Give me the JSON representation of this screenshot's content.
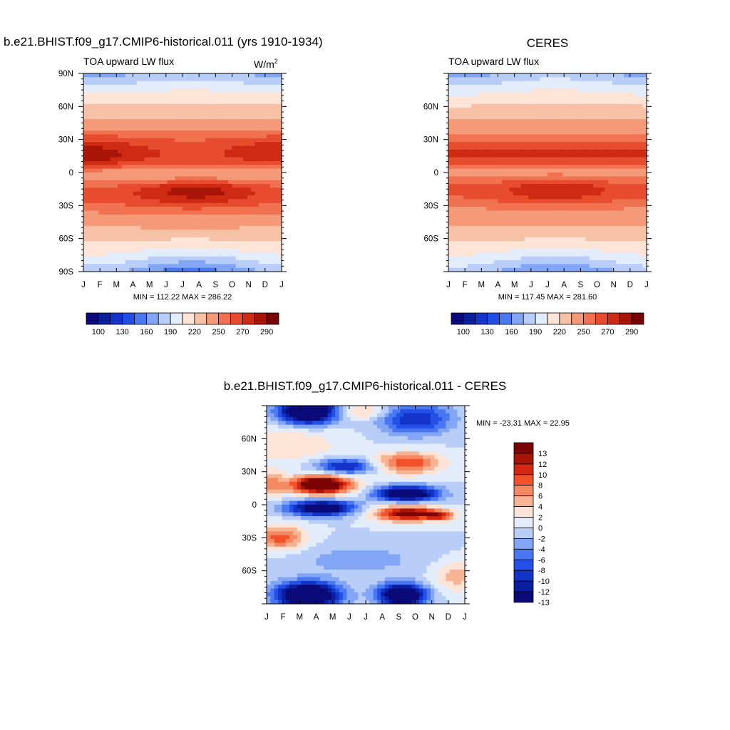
{
  "chart_data": [
    {
      "type": "heatmap",
      "title": "b.e21.BHIST.f09_g17.CMIP6-historical.011 (yrs 1910-1934)",
      "subtitle_left": "TOA upward LW flux",
      "units_base": "W/m",
      "units_exp": "2",
      "x_ticks": [
        "J",
        "F",
        "M",
        "A",
        "M",
        "J",
        "J",
        "A",
        "S",
        "O",
        "N",
        "D",
        "J"
      ],
      "y_ticks": [
        "90N",
        "60N",
        "30N",
        "0",
        "30S",
        "60S",
        "90S"
      ],
      "stats": "MIN = 112.22 MAX = 286.22",
      "colorbar_labels": [
        "100",
        "130",
        "160",
        "190",
        "220",
        "250",
        "270",
        "290"
      ],
      "levels": [
        90,
        100,
        115,
        130,
        145,
        160,
        175,
        190,
        205,
        220,
        235,
        250,
        260,
        270,
        280,
        290
      ]
    },
    {
      "type": "heatmap",
      "title": "CERES",
      "subtitle_left": "TOA upward LW flux",
      "x_ticks": [
        "J",
        "F",
        "M",
        "A",
        "M",
        "J",
        "J",
        "A",
        "S",
        "O",
        "N",
        "D",
        "J"
      ],
      "y_ticks": [
        "60N",
        "30N",
        "0",
        "30S",
        "60S"
      ],
      "stats": "MIN = 117.45 MAX = 281.60",
      "colorbar_labels": [
        "100",
        "130",
        "160",
        "190",
        "220",
        "250",
        "270",
        "290"
      ]
    },
    {
      "type": "heatmap",
      "title": "b.e21.BHIST.f09_g17.CMIP6-historical.011 - CERES",
      "x_ticks": [
        "J",
        "F",
        "M",
        "A",
        "M",
        "J",
        "J",
        "A",
        "S",
        "O",
        "N",
        "D",
        "J"
      ],
      "y_ticks": [
        "60N",
        "30N",
        "0",
        "30S",
        "60S"
      ],
      "stats": "MIN = -23.31 MAX =  22.95",
      "colorbar_labels": [
        "13",
        "12",
        "10",
        "8",
        "6",
        "4",
        "2",
        "0",
        "-2",
        "-4",
        "-6",
        "-8",
        "-10",
        "-12",
        "-13"
      ]
    }
  ],
  "colors": {
    "abs_palette": [
      "#0a0a78",
      "#0a1ea0",
      "#1433c8",
      "#1f4ee6",
      "#4a78f2",
      "#82a6f5",
      "#b8cdf7",
      "#e2ecfa",
      "#fde4d6",
      "#f7c1a6",
      "#f59a78",
      "#f07250",
      "#e84c2e",
      "#cf2a12",
      "#a81506",
      "#7a0303"
    ],
    "diff_palette": [
      "#7a0303",
      "#a81506",
      "#d4270f",
      "#f2512a",
      "#f58a62",
      "#f7b494",
      "#fde4d6",
      "#e2ecfa",
      "#b8cdf7",
      "#82a6f5",
      "#4a78f2",
      "#2350e6",
      "#1433c8",
      "#0a1ea0",
      "#0a0a78"
    ]
  }
}
